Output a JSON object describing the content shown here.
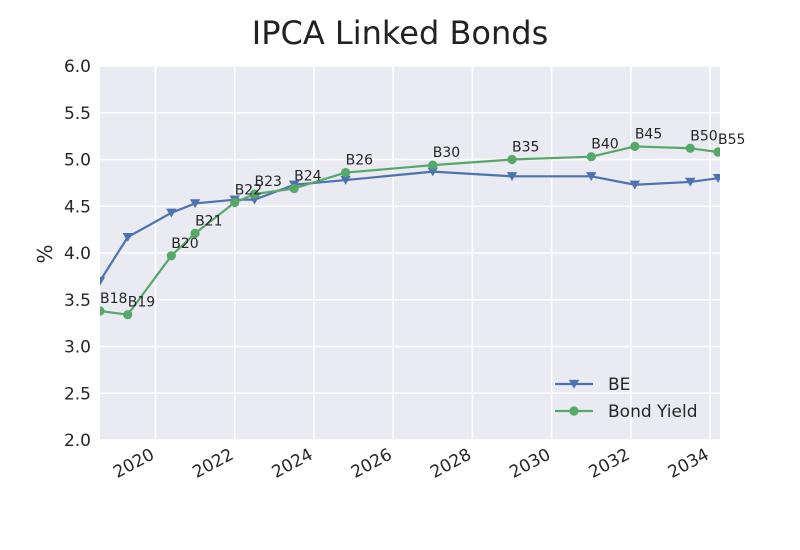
{
  "chart_data": {
    "type": "line",
    "title": "IPCA Linked Bonds",
    "xlabel": "",
    "ylabel": "%",
    "xlim": [
      2018.6,
      2034.25
    ],
    "ylim": [
      2.0,
      6.0
    ],
    "x_ticks": [
      2020,
      2022,
      2024,
      2026,
      2028,
      2030,
      2032,
      2034
    ],
    "x_tick_labels": [
      "2020",
      "2022",
      "2024",
      "2026",
      "2028",
      "2030",
      "2032",
      "2034"
    ],
    "y_ticks": [
      2.0,
      2.5,
      3.0,
      3.5,
      4.0,
      4.5,
      5.0,
      5.5,
      6.0
    ],
    "y_tick_labels": [
      "2.0",
      "2.5",
      "3.0",
      "3.5",
      "4.0",
      "4.5",
      "5.0",
      "5.5",
      "6.0"
    ],
    "grid": true,
    "legend_position": "lower-right",
    "series": [
      {
        "name": "BE",
        "color": "#4c72b0",
        "marker": "triangle-down",
        "points": [
          {
            "x": 2018.6,
            "y": 3.7
          },
          {
            "x": 2019.3,
            "y": 4.17
          },
          {
            "x": 2020.4,
            "y": 4.43
          },
          {
            "x": 2021.0,
            "y": 4.53
          },
          {
            "x": 2022.0,
            "y": 4.57
          },
          {
            "x": 2022.5,
            "y": 4.57
          },
          {
            "x": 2023.5,
            "y": 4.73
          },
          {
            "x": 2024.8,
            "y": 4.78
          },
          {
            "x": 2027.0,
            "y": 4.87
          },
          {
            "x": 2029.0,
            "y": 4.82
          },
          {
            "x": 2031.0,
            "y": 4.82
          },
          {
            "x": 2032.1,
            "y": 4.73
          },
          {
            "x": 2033.5,
            "y": 4.76
          },
          {
            "x": 2034.2,
            "y": 4.8
          }
        ]
      },
      {
        "name": "Bond Yield",
        "color": "#55a868",
        "marker": "circle",
        "points": [
          {
            "x": 2018.6,
            "y": 3.38,
            "label": "B18"
          },
          {
            "x": 2019.3,
            "y": 3.34,
            "label": "B19"
          },
          {
            "x": 2020.4,
            "y": 3.97,
            "label": "B20"
          },
          {
            "x": 2021.0,
            "y": 4.21,
            "label": "B21"
          },
          {
            "x": 2022.0,
            "y": 4.54,
            "label": "B22"
          },
          {
            "x": 2022.5,
            "y": 4.63,
            "label": "B23"
          },
          {
            "x": 2023.5,
            "y": 4.69,
            "label": "B24"
          },
          {
            "x": 2024.8,
            "y": 4.86,
            "label": "B26"
          },
          {
            "x": 2027.0,
            "y": 4.94,
            "label": "B30"
          },
          {
            "x": 2029.0,
            "y": 5.0,
            "label": "B35"
          },
          {
            "x": 2031.0,
            "y": 5.03,
            "label": "B40"
          },
          {
            "x": 2032.1,
            "y": 5.14,
            "label": "B45"
          },
          {
            "x": 2033.5,
            "y": 5.12,
            "label": "B50"
          },
          {
            "x": 2034.2,
            "y": 5.08,
            "label": "B55"
          }
        ]
      }
    ]
  }
}
